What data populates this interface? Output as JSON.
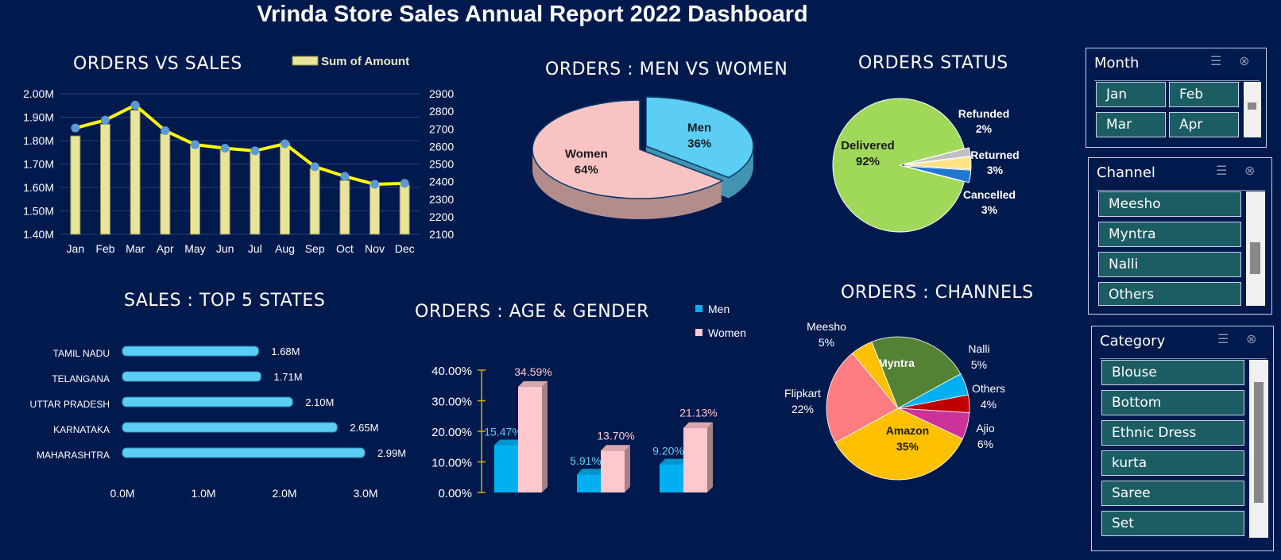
{
  "title": "Vrinda Store Sales Annual Report 2022 Dashboard",
  "chart_data": [
    {
      "type": "bar+line",
      "title": "ORDERS VS SALES",
      "legend": "Sum of Amount",
      "categories": [
        "Jan",
        "Feb",
        "Mar",
        "Apr",
        "May",
        "Jun",
        "Jul",
        "Aug",
        "Sep",
        "Oct",
        "Nov",
        "Dec"
      ],
      "series": [
        {
          "name": "Sum of Amount",
          "type": "bar",
          "axis": "left",
          "values": [
            1.82,
            1.87,
            1.93,
            1.83,
            1.78,
            1.76,
            1.75,
            1.79,
            1.68,
            1.63,
            1.61,
            1.61
          ]
        },
        {
          "type": "line",
          "axis": "right",
          "values": [
            2705,
            2750,
            2835,
            2690,
            2610,
            2590,
            2575,
            2615,
            2485,
            2430,
            2385,
            2390
          ]
        }
      ],
      "ylim_left": [
        1.4,
        2.0
      ],
      "yticks_left": [
        "1.40M",
        "1.50M",
        "1.60M",
        "1.70M",
        "1.80M",
        "1.90M",
        "2.00M"
      ],
      "ylim_right": [
        2100,
        2900
      ],
      "yticks_right": [
        "2100",
        "2200",
        "2300",
        "2400",
        "2500",
        "2600",
        "2700",
        "2800",
        "2900"
      ],
      "colors": {
        "bar": "#e8e49a",
        "line": "#ffff00",
        "marker": "#5b9bd5"
      }
    },
    {
      "type": "pie",
      "title": "ORDERS : MEN VS WOMEN",
      "slices": [
        {
          "label": "Men",
          "value": 36,
          "text": "36%",
          "color": "#5ccdf5"
        },
        {
          "label": "Women",
          "value": 64,
          "text": "64%",
          "color": "#f9c3c3"
        }
      ]
    },
    {
      "type": "pie",
      "title": "ORDERS STATUS",
      "slices": [
        {
          "label": "Delivered",
          "value": 92,
          "text": "92%",
          "color": "#a0d95a"
        },
        {
          "label": "Refunded",
          "value": 2,
          "text": "2%",
          "color": "#bfbfbf"
        },
        {
          "label": "Returned",
          "value": 3,
          "text": "3%",
          "color": "#ffe380"
        },
        {
          "label": "Cancelled",
          "value": 3,
          "text": "3%",
          "color": "#1f77d4"
        }
      ]
    },
    {
      "type": "bar",
      "title": "SALES : TOP 5 STATES",
      "orientation": "horizontal",
      "categories": [
        "TAMIL NADU",
        "TELANGANA",
        "UTTAR PRADESH",
        "KARNATAKA",
        "MAHARASHTRA"
      ],
      "values": [
        1.68,
        1.71,
        2.1,
        2.65,
        2.99
      ],
      "labels": [
        "1.68M",
        "1.71M",
        "2.10M",
        "2.65M",
        "2.99M"
      ],
      "xlim": [
        0,
        3.0
      ],
      "xticks": [
        "0.0M",
        "1.0M",
        "2.0M",
        "3.0M"
      ],
      "color": "#5ccdf5"
    },
    {
      "type": "bar",
      "title": "ORDERS : AGE & GENDER",
      "groups": 3,
      "series": [
        {
          "name": "Men",
          "values": [
            15.47,
            5.91,
            9.2
          ],
          "labels": [
            "15.47%",
            "5.91%",
            "9.20%"
          ],
          "color": "#00b0f0"
        },
        {
          "name": "Women",
          "values": [
            34.59,
            13.7,
            21.13
          ],
          "labels": [
            "34.59%",
            "13.70%",
            "21.13%"
          ],
          "color": "#ffc7ce"
        }
      ],
      "ylim": [
        0,
        40
      ],
      "yticks": [
        "0.00%",
        "10.00%",
        "20.00%",
        "30.00%",
        "40.00%"
      ]
    },
    {
      "type": "pie",
      "title": "ORDERS : CHANNELS",
      "slices": [
        {
          "label": "Myntra",
          "value": 23,
          "text": "",
          "color": "#548235"
        },
        {
          "label": "Nalli",
          "value": 5,
          "text": "5%",
          "color": "#00b0f0"
        },
        {
          "label": "Others",
          "value": 4,
          "text": "4%",
          "color": "#c00000"
        },
        {
          "label": "Ajio",
          "value": 6,
          "text": "6%",
          "color": "#cc3399"
        },
        {
          "label": "Amazon",
          "value": 35,
          "text": "35%",
          "color": "#ffc000"
        },
        {
          "label": "Flipkart",
          "value": 22,
          "text": "22%",
          "color": "#ff7c80"
        },
        {
          "label": "Meesho",
          "value": 5,
          "text": "5%",
          "color": "#ffc000"
        }
      ]
    }
  ],
  "slicers": {
    "month": {
      "header": "Month",
      "items": [
        "Jan",
        "Feb",
        "Mar",
        "Apr"
      ]
    },
    "channel": {
      "header": "Channel",
      "items": [
        "Meesho",
        "Myntra",
        "Nalli",
        "Others"
      ]
    },
    "category": {
      "header": "Category",
      "items": [
        "Blouse",
        "Bottom",
        "Ethnic Dress",
        "kurta",
        "Saree",
        "Set"
      ]
    }
  }
}
